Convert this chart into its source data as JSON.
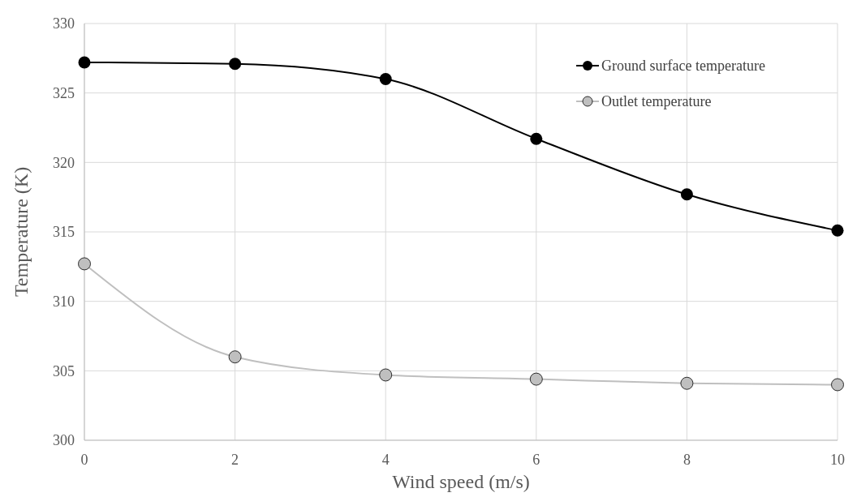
{
  "chart_data": {
    "type": "line",
    "xlabel": "Wind speed (m/s)",
    "ylabel": "Temperature (K)",
    "x": [
      0,
      2,
      4,
      6,
      8,
      10
    ],
    "series": [
      {
        "name": "Ground surface temperature",
        "color": "#000000",
        "values": [
          327.2,
          327.1,
          326.0,
          321.7,
          317.7,
          315.1
        ]
      },
      {
        "name": "Outlet temperature",
        "color": "#bfbfbf",
        "values": [
          312.7,
          306.0,
          304.7,
          304.4,
          304.1,
          304.0
        ]
      }
    ],
    "xlim": [
      0,
      10
    ],
    "xticks": [
      0,
      2,
      4,
      6,
      8,
      10
    ],
    "ylim": [
      300,
      330
    ],
    "yticks": [
      300,
      305,
      310,
      315,
      320,
      325,
      330
    ],
    "grid": true,
    "legend": "top right",
    "marker": "circle",
    "line_style": "solid"
  }
}
